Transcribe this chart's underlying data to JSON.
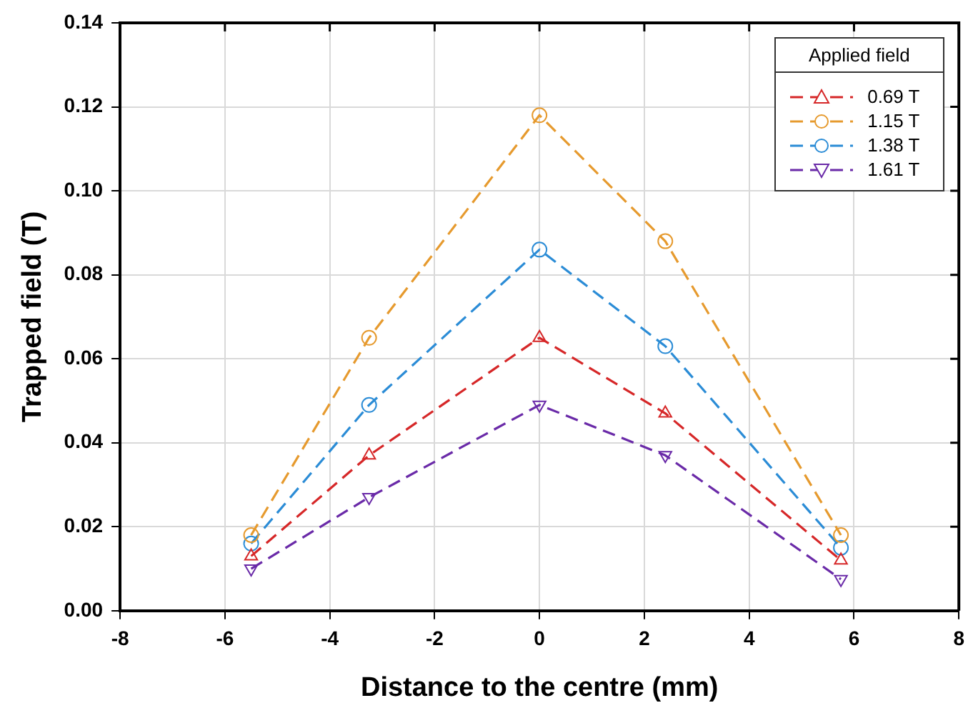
{
  "chart_data": {
    "type": "line",
    "xlabel": "Distance to the centre (mm)",
    "ylabel": "Trapped field (T)",
    "legend_title": "Applied field",
    "x": [
      -5.5,
      -3.25,
      0,
      2.4,
      5.75
    ],
    "series": [
      {
        "name": "0.69 T",
        "color": "#d62728",
        "marker": "triangle",
        "values": [
          0.013,
          0.037,
          0.065,
          0.047,
          0.012
        ]
      },
      {
        "name": "1.15 T",
        "color": "#e69a2e",
        "marker": "circle",
        "values": [
          0.018,
          0.065,
          0.118,
          0.088,
          0.018
        ]
      },
      {
        "name": "1.38 T",
        "color": "#2b8cd6",
        "marker": "circle",
        "values": [
          0.016,
          0.049,
          0.086,
          0.063,
          0.015
        ]
      },
      {
        "name": "1.61 T",
        "color": "#6a2aa8",
        "marker": "triangle-down",
        "values": [
          0.01,
          0.027,
          0.049,
          0.037,
          0.0075
        ]
      }
    ],
    "xlim": [
      -8,
      8
    ],
    "xticks": [
      -8,
      -6,
      -4,
      -2,
      0,
      2,
      4,
      6,
      8
    ],
    "ylim": [
      0,
      0.14
    ],
    "yticks": [
      {
        "value": 0,
        "label": "0.00"
      },
      {
        "value": 0.02,
        "label": "0.02"
      },
      {
        "value": 0.04,
        "label": "0.04"
      },
      {
        "value": 0.06,
        "label": "0.06"
      },
      {
        "value": 0.08,
        "label": "0.08"
      },
      {
        "value": 0.1,
        "label": "0.10"
      },
      {
        "value": 0.12,
        "label": "0.12"
      },
      {
        "value": 0.14,
        "label": "0.14"
      }
    ],
    "grid": true,
    "legend": "top right",
    "line_style": "dashed"
  }
}
